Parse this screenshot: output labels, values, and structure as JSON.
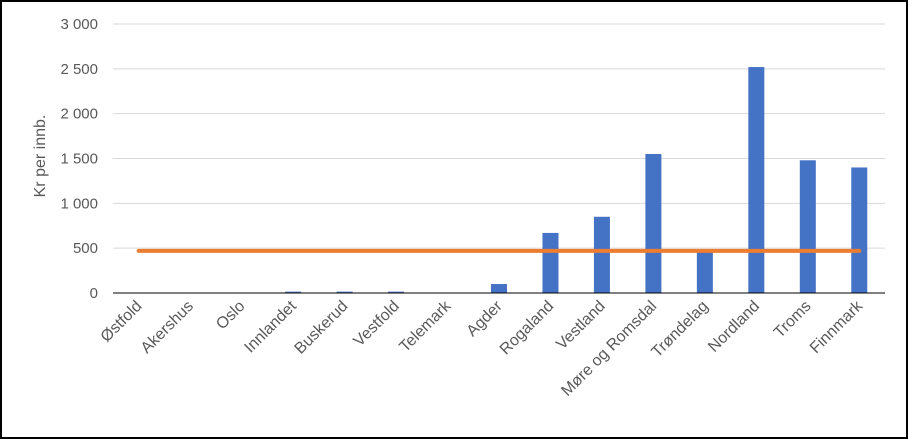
{
  "chart_data": {
    "type": "bar",
    "ylabel": "Kr per innb.",
    "ylim": [
      0,
      3000
    ],
    "yticks": [
      0,
      500,
      1000,
      1500,
      2000,
      2500,
      3000
    ],
    "ytick_labels": [
      "0",
      "500",
      "1 000",
      "1 500",
      "2 000",
      "2 500",
      "3 000"
    ],
    "grid": true,
    "categories": [
      "Østfold",
      "Akershus",
      "Oslo",
      "Innlandet",
      "Buskerud",
      "Vestfold",
      "Telemark",
      "Agder",
      "Rogaland",
      "Vestland",
      "Møre og Romsdal",
      "Trøndelag",
      "Nordland",
      "Troms",
      "Finnmark"
    ],
    "series": [
      {
        "type": "bar",
        "color": "#4472C4",
        "values": [
          0,
          0,
          0,
          15,
          15,
          15,
          0,
          100,
          670,
          850,
          1550,
          470,
          2520,
          1480,
          1400
        ]
      },
      {
        "type": "line",
        "color": "#ED7D31",
        "values": [
          470,
          470,
          470,
          470,
          470,
          470,
          470,
          470,
          470,
          470,
          470,
          470,
          470,
          470,
          470
        ]
      }
    ]
  }
}
